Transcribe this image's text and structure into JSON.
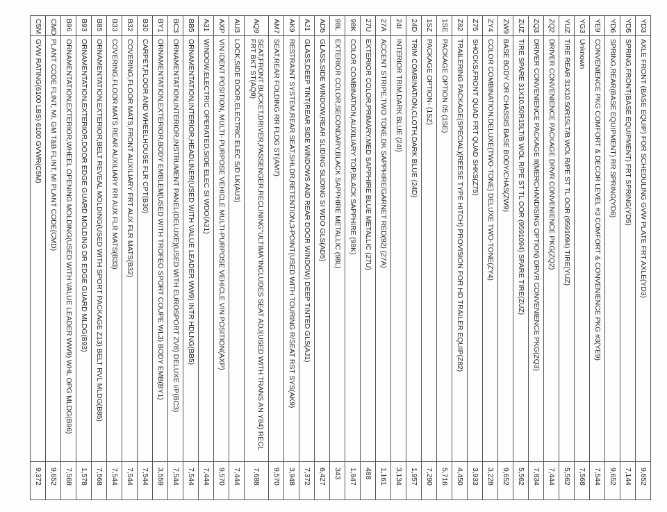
{
  "rows": [
    {
      "code": "YD3",
      "description": "AXLE FRONT (BASE EQUIP) FOR SCHEDULING GVW PLATE FRT AXLE(YD3)",
      "value": "9,652"
    },
    {
      "code": "YD5",
      "description": "SPRING,FRONT(BASE EQUIPMENT) FRT SPRING(YD5)",
      "value": "7,144"
    },
    {
      "code": "YD6",
      "description": "SPRING,REAR(BASE EQUIPMENT) RR SPRING(YD6)",
      "value": "9,652"
    },
    {
      "code": "YE9",
      "description": "CONVENIENCE PKG COMFORT & DECOR LEVEL #3 COMFORT & CONVENIENCE PKG #3(YE9)",
      "value": "7,544"
    },
    {
      "code": "YG3",
      "description": "Unknown",
      "value": "7,568"
    },
    {
      "code": "YUZ",
      "description": "TIRE REAR 31X10.50R15LT/B WOL R/PE ST TL OOR (9591094) TIRE(YUZ)",
      "value": "5,562"
    },
    {
      "code": "ZQ2",
      "description": "DRIVER CONVENIENCE PACKAGE DRVR CONVENIENCE PKG(ZQ2)",
      "value": "7,444"
    },
    {
      "code": "ZQ3",
      "description": "DRIVER CONVENIENCE PACKAGE II(MERCHANDISING OPTION) DRVR CONVENIENCE PKG(ZQ3)",
      "value": "7,834"
    },
    {
      "code": "ZUZ",
      "description": "TIRE SPARE 31X10.50R15LT/B WOL R/PE ST TL OOR (9591094) SPARE TIRE(ZUZ)",
      "value": "5,562"
    },
    {
      "code": "ZW9",
      "description": "BASE BODY OR CHASSIS BASE BODY/CHAS(ZW9)",
      "value": "9,652"
    },
    {
      "code": "ZY4",
      "description": "COLOR COMBINATION,DELUXE(TWO-TONE) DELUXE TWO-TONE(ZY4)",
      "value": "3,228"
    },
    {
      "code": "Z75",
      "description": "SHOCKS,FRONT QUAD FRT QUAD SHKS(Z75)",
      "value": "3,933"
    },
    {
      "code": "Z82",
      "description": "TRAILERING PACKAGE(SPECIAL)(REESE TYPE HITCH) PROVISION FOR HD TRAILER EQUIP(Z82)",
      "value": "4,450"
    },
    {
      "code": "1SE",
      "description": "PACKAGE OPTION 05 (1SE)",
      "value": "5,716"
    },
    {
      "code": "1SZ",
      "description": "PACKAGE OPTION- (1SZ)",
      "value": "7,290"
    },
    {
      "code": "24D",
      "description": "TRIM COMBINATION,CLOTH,DARK BLUE (24D)",
      "value": "1,957"
    },
    {
      "code": "24I",
      "description": "INTERIOR TRIM,DARK BLUE (24I)",
      "value": "3,134"
    },
    {
      "code": "27A",
      "description": "ACCENT STRIPE,TWO TONE,DK SAPPHIRE/GARNET RED(92) (27A)",
      "value": "1,161"
    },
    {
      "code": "27U",
      "description": "EXTERIOR COLOR,PRIMARY,MED SAPPHIRE BLUE METALLIC (27U)",
      "value": "488"
    },
    {
      "code": "98K",
      "description": "COLOR COMBINATION,AUXILIARY TOP,BLACK SAPPHIRE (98K)",
      "value": "1,847"
    },
    {
      "code": "98L",
      "description": "EXTERIOR COLOR,SECONDARY,BLACK SAPPHIRE METALLIC (98L)",
      "value": "343"
    },
    {
      "code": "AD5",
      "description": "GLASS,SIDE WINDOW,REAR SLIDING SLIDING SI WDO GLS(AD5)",
      "value": "6,427"
    },
    {
      "code": "AJ1",
      "description": "GLASS,DEEP TINT(REAR SIDE WINDOWS AND REAR DOOR WINDOW) DEEP TINTED GLS(AJ1)",
      "value": "7,372"
    },
    {
      "code": "AK9",
      "description": "RESTRAINT SYSTEM,REAR SEAT,SHLDR,RETENTION,3-POINT(USED WITH TOURING R/SEAT RST SYS(AK9)",
      "value": "3,948"
    },
    {
      "code": "AM7",
      "description": "SEAT,REAR FOLDING RR FLDG ST(AM7)",
      "value": "9,570"
    },
    {
      "code": "AQ9",
      "description": "SEAT,FRONT BUCKET,DRIVER,PASSENGER,RECLINING\"ULTIMA\"INCLUDES SEAT ADJ(USED WITH TRANS AN Y84) RECL FRT BKT ST(AQ9)",
      "value": "7,688"
    },
    {
      "code": "AU3",
      "description": "LOCK,SIDE DOOR,ELECTRIC ELEC S/D LK(AU3)",
      "value": "7,444"
    },
    {
      "code": "AXP",
      "description": "VIN IDENT POSITION, MULTI- PURPOSE VEHICLE MULTI-PURPOSE VEHICLE VIN POSITION(AXP)",
      "value": "9,570"
    },
    {
      "code": "A31",
      "description": "WINDOW,ELECTRIC OPERATED,SIDE ELEC SI WDO(A31)",
      "value": "7,444"
    },
    {
      "code": "BB5",
      "description": "ORNAMENTATION,INTERIOR,HEADLINER(USED WITH VALUE LEADER WW9) INTR HDLNG(BB5)",
      "value": "7,544"
    },
    {
      "code": "BC3",
      "description": "ORNAMENTATION,INTERIOR,INSTRUMENT PANEL(DELUXE)(USED WITH EUROSPORT ZV8) DELUXE I/P(BC3)",
      "value": "7,544"
    },
    {
      "code": "BY1",
      "description": "ORNAMENTATION,EXTERIOR,BODY EMBLEM(USED WITH TROFEO SPORT COUPE WL3) BODY EMB(BY1)",
      "value": "3,559"
    },
    {
      "code": "B30",
      "description": "CARPET,FLOOR AND WHEELHOUSE FLR CPT(B30)",
      "value": "7,544"
    },
    {
      "code": "B32",
      "description": "COVERING,FLOOR MATS,FRONT AUXILIARY FRT AUX FLR MATS(B32)",
      "value": "7,544"
    },
    {
      "code": "B33",
      "description": "COVERING,FLOOR MATS,REAR AUXILIARY RR AUX FLR MATS(B33)",
      "value": "7,544"
    },
    {
      "code": "B85",
      "description": "ORNAMENTATION,EXTERIOR,BELT REVEAL MOLDING(USED WITH SPORT PACKAGE Z13) BELT RVL MLDG(B85)",
      "value": "7,568"
    },
    {
      "code": "B93",
      "description": "ORNAMENTATION,EXTERIOR,DOOR EDGE GUARD MOLDING DR EDGE GUARD MLDG(B93)",
      "value": "1,578"
    },
    {
      "code": "B96",
      "description": "ORNAMENTATION,EXTERIOR,WHEEL OPENING MOLDING(USED WITH VALUE LEADER WW9) WHL OPG MLDG(B96)",
      "value": "7,568"
    },
    {
      "code": "CMD",
      "description": "PLANT CODE FLINT, MI, GM T&B FLINT, MI PLANT CODE(CMD)",
      "value": "9,652"
    },
    {
      "code": "C5M",
      "description": "GVW RATING(6100 LBS) 6100 GVWR(C5M)",
      "value": "9,372"
    }
  ]
}
